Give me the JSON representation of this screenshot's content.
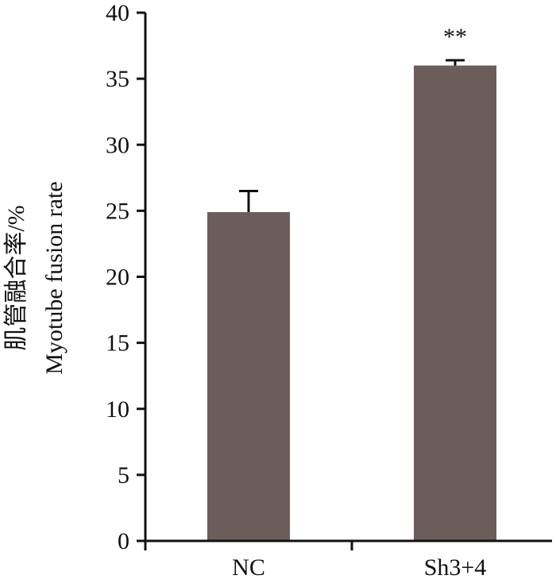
{
  "chart_data": {
    "type": "bar",
    "categories": [
      "NC",
      "Sh3+4"
    ],
    "values": [
      24.9,
      36.0
    ],
    "error": [
      1.6,
      0.4
    ],
    "ylabel_cn": "肌管融合率/%",
    "ylabel_en": "Myotube fusion rate",
    "ylim": [
      0,
      40
    ],
    "yticks": [
      0,
      5,
      10,
      15,
      20,
      25,
      30,
      35,
      40
    ],
    "annotations": [
      "",
      "**"
    ],
    "bar_color": "#6b5e5a",
    "axis_color": "#111111",
    "grid": false
  }
}
